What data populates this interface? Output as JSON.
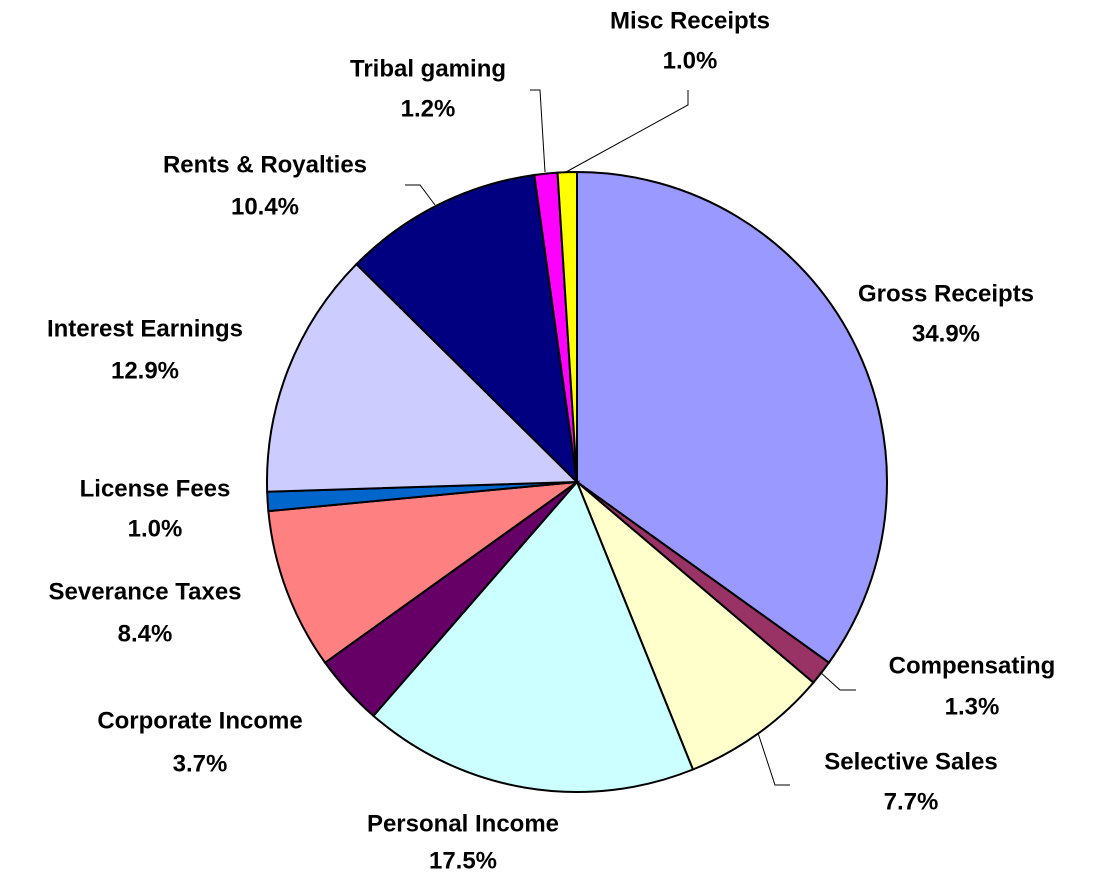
{
  "chart_data": {
    "type": "pie",
    "categories": [
      "Gross Receipts",
      "Compensating",
      "Selective Sales",
      "Personal Income",
      "Corporate Income",
      "Severance Taxes",
      "License Fees",
      "Interest Earnings",
      "Rents & Royalties",
      "Tribal gaming",
      "Misc Receipts"
    ],
    "values": [
      34.9,
      1.3,
      7.7,
      17.5,
      3.7,
      8.4,
      1.0,
      12.9,
      10.4,
      1.2,
      1.0
    ],
    "value_labels": [
      "34.9%",
      "1.3%",
      "7.7%",
      "17.5%",
      "3.7%",
      "8.4%",
      "1.0%",
      "12.9%",
      "10.4%",
      "1.2%",
      "1.0%"
    ],
    "colors": [
      "#9999ff",
      "#993366",
      "#ffffcc",
      "#ccffff",
      "#660066",
      "#ff8080",
      "#0066cc",
      "#ccccff",
      "#000080",
      "#ff00ff",
      "#ffff00"
    ]
  }
}
